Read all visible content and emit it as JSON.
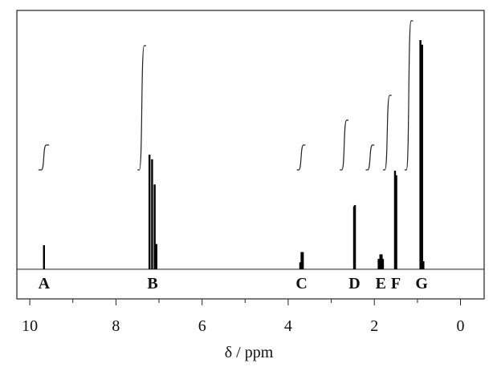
{
  "chart_data": {
    "type": "spectrum",
    "xlabel": "δ / ppm",
    "ylabel": "",
    "xlim": [
      10.3,
      -0.55
    ],
    "ticks": [
      10,
      8,
      6,
      4,
      2,
      0
    ],
    "tick_labels": [
      "10",
      "8",
      "6",
      "4",
      "2",
      "0"
    ],
    "minor_ticks": [
      9,
      7,
      5,
      3,
      1
    ],
    "intensity_max": 1.0,
    "peaks": [
      {
        "ppm": 9.67,
        "height": 0.105
      },
      {
        "ppm": 7.22,
        "height": 0.5
      },
      {
        "ppm": 7.16,
        "height": 0.48
      },
      {
        "ppm": 7.1,
        "height": 0.37
      },
      {
        "ppm": 7.06,
        "height": 0.11
      },
      {
        "ppm": 3.72,
        "height": 0.03
      },
      {
        "ppm": 3.69,
        "height": 0.075
      },
      {
        "ppm": 3.66,
        "height": 0.075
      },
      {
        "ppm": 2.47,
        "height": 0.275
      },
      {
        "ppm": 2.45,
        "height": 0.28
      },
      {
        "ppm": 1.9,
        "height": 0.045
      },
      {
        "ppm": 1.86,
        "height": 0.065
      },
      {
        "ppm": 1.83,
        "height": 0.065
      },
      {
        "ppm": 1.8,
        "height": 0.045
      },
      {
        "ppm": 1.52,
        "height": 0.43
      },
      {
        "ppm": 1.49,
        "height": 0.41
      },
      {
        "ppm": 0.93,
        "height": 1.0
      },
      {
        "ppm": 0.89,
        "height": 0.98
      },
      {
        "ppm": 0.86,
        "height": 0.035
      }
    ],
    "labels": [
      {
        "text": "A",
        "ppm": 9.67
      },
      {
        "text": "B",
        "ppm": 7.15
      },
      {
        "text": "C",
        "ppm": 3.69
      },
      {
        "text": "D",
        "ppm": 2.46
      },
      {
        "text": "E",
        "ppm": 1.85
      },
      {
        "text": "F",
        "ppm": 1.5
      },
      {
        "text": "G",
        "ppm": 0.9
      }
    ],
    "integrals": [
      {
        "from": 9.8,
        "to": 9.55,
        "value": 1
      },
      {
        "from": 7.5,
        "to": 7.3,
        "value": 5
      },
      {
        "from": 3.8,
        "to": 3.6,
        "value": 1
      },
      {
        "from": 2.8,
        "to": 2.6,
        "value": 2
      },
      {
        "from": 2.2,
        "to": 2.0,
        "value": 1
      },
      {
        "from": 1.8,
        "to": 1.6,
        "value": 3
      },
      {
        "from": 1.3,
        "to": 1.1,
        "value": 6
      }
    ]
  }
}
